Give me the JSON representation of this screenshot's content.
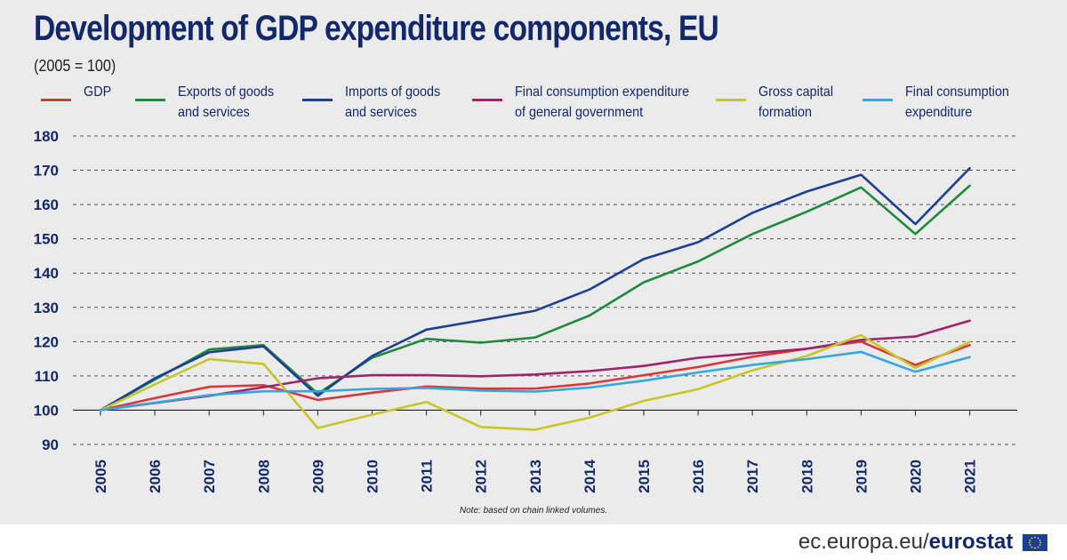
{
  "title": "Development of GDP expenditure components, EU",
  "subtitle": "(2005 = 100)",
  "note": "Note: based on chain linked volumes.",
  "footer": {
    "domain": "ec.europa.eu/",
    "brand": "eurostat",
    "flag_icon": "eu-flag-icon"
  },
  "chart_data": {
    "type": "line",
    "title": "Development of GDP expenditure components, EU",
    "subtitle": "(2005 = 100)",
    "xlabel": "",
    "ylabel": "",
    "ylim": [
      90,
      180
    ],
    "yticks": [
      "90",
      "100",
      "110",
      "120",
      "130",
      "140",
      "150",
      "160",
      "170",
      "180"
    ],
    "grid": true,
    "legend_position": "top",
    "categories": [
      "2005",
      "2006",
      "2007",
      "2008",
      "2009",
      "2010",
      "2011",
      "2012",
      "2013",
      "2014",
      "2015",
      "2016",
      "2017",
      "2018",
      "2019",
      "2020",
      "2021"
    ],
    "series": [
      {
        "key": "gdp",
        "name": "GDP",
        "color": "#d9383a",
        "values": [
          100,
          103.5,
          106.8,
          107.3,
          103.0,
          105.1,
          106.9,
          106.3,
          106.3,
          107.8,
          110.2,
          112.6,
          115.6,
          117.9,
          120.0,
          113.2,
          119.0
        ]
      },
      {
        "key": "exports",
        "name": "Exports of goods and services",
        "color": "#1f8a3b",
        "values": [
          100,
          108.9,
          117.7,
          119.0,
          104.8,
          115.3,
          120.8,
          119.7,
          121.2,
          127.6,
          137.3,
          143.4,
          151.4,
          157.9,
          165.0,
          151.4,
          165.5
        ]
      },
      {
        "key": "imports",
        "name": "Imports of goods and services",
        "color": "#1c3f94",
        "values": [
          100,
          109.3,
          116.9,
          118.6,
          104.2,
          115.8,
          123.5,
          126.2,
          129.0,
          135.2,
          144.1,
          149.0,
          157.6,
          163.8,
          168.7,
          154.3,
          170.6
        ]
      },
      {
        "key": "government",
        "name": "Final consumption expenditure of general government",
        "color": "#a0246b",
        "values": [
          100,
          102.1,
          104.2,
          106.7,
          109.3,
          110.2,
          110.2,
          109.9,
          110.4,
          111.4,
          112.9,
          115.3,
          116.6,
          117.9,
          120.5,
          121.5,
          126.1
        ]
      },
      {
        "key": "capital",
        "name": "Gross capital formation",
        "color": "#c6c629",
        "values": [
          100,
          107.5,
          114.9,
          113.5,
          94.8,
          98.7,
          102.4,
          95.1,
          94.3,
          97.8,
          102.7,
          106.1,
          111.6,
          115.8,
          121.9,
          112.3,
          119.9
        ]
      },
      {
        "key": "consumption",
        "name": "Final consumption expenditure",
        "color": "#35a7de",
        "values": [
          100,
          102.2,
          104.4,
          105.5,
          105.5,
          106.2,
          106.5,
          105.7,
          105.4,
          106.6,
          108.6,
          111.0,
          113.2,
          114.9,
          117.0,
          111.2,
          115.5
        ]
      }
    ],
    "legend_labels": [
      "GDP",
      "Exports of goods\nand services",
      "Imports of goods\nand services",
      "Final consumption expenditure\nof general government",
      "Gross capital\nformation",
      "Final consumption\nexpenditure"
    ]
  }
}
